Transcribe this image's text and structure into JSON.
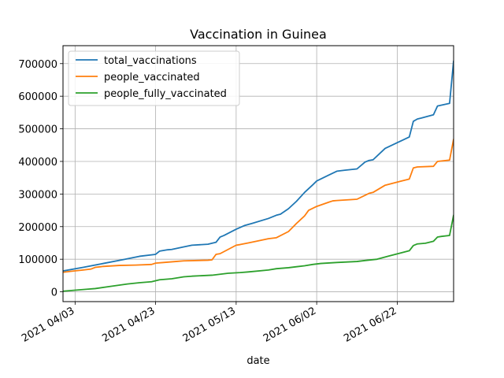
{
  "chart_data": {
    "type": "line",
    "title": "Vaccination in Guinea",
    "xlabel": "date",
    "ylabel": "",
    "x_start": "2021-03-31",
    "xlim": [
      "2021-03-31",
      "2021-07-06"
    ],
    "ylim": [
      -30000,
      755000
    ],
    "grid": true,
    "legend_position": "top-left",
    "x_ticks": [
      {
        "date": "2021-04-03",
        "label": "2021 04/03"
      },
      {
        "date": "2021-04-23",
        "label": "2021 04/23"
      },
      {
        "date": "2021-05-13",
        "label": "2021 05/13"
      },
      {
        "date": "2021-06-02",
        "label": "2021 06/02"
      },
      {
        "date": "2021-06-22",
        "label": "2021 06/22"
      }
    ],
    "y_ticks": [
      {
        "value": 0,
        "label": "0"
      },
      {
        "value": 100000,
        "label": "100000"
      },
      {
        "value": 200000,
        "label": "200000"
      },
      {
        "value": 300000,
        "label": "300000"
      },
      {
        "value": 400000,
        "label": "400000"
      },
      {
        "value": 500000,
        "label": "500000"
      },
      {
        "value": 600000,
        "label": "600000"
      },
      {
        "value": 700000,
        "label": "700000"
      }
    ],
    "series": [
      {
        "name": "total_vaccinations",
        "color": "#1f77b4",
        "points": [
          [
            "2021-03-31",
            64000
          ],
          [
            "2021-04-05",
            75000
          ],
          [
            "2021-04-10",
            87000
          ],
          [
            "2021-04-15",
            99000
          ],
          [
            "2021-04-19",
            109000
          ],
          [
            "2021-04-23",
            115000
          ],
          [
            "2021-04-24",
            125000
          ],
          [
            "2021-04-26",
            129000
          ],
          [
            "2021-04-27",
            130000
          ],
          [
            "2021-04-30",
            138000
          ],
          [
            "2021-05-02",
            143000
          ],
          [
            "2021-05-06",
            146000
          ],
          [
            "2021-05-08",
            152000
          ],
          [
            "2021-05-09",
            168000
          ],
          [
            "2021-05-10",
            173000
          ],
          [
            "2021-05-13",
            192000
          ],
          [
            "2021-05-15",
            203000
          ],
          [
            "2021-05-17",
            210000
          ],
          [
            "2021-05-21",
            225000
          ],
          [
            "2021-05-23",
            235000
          ],
          [
            "2021-05-24",
            238000
          ],
          [
            "2021-05-26",
            255000
          ],
          [
            "2021-05-28",
            278000
          ],
          [
            "2021-05-30",
            305000
          ],
          [
            "2021-06-01",
            328000
          ],
          [
            "2021-06-02",
            340000
          ],
          [
            "2021-06-05",
            358000
          ],
          [
            "2021-06-07",
            370000
          ],
          [
            "2021-06-09",
            373000
          ],
          [
            "2021-06-12",
            377000
          ],
          [
            "2021-06-14",
            398000
          ],
          [
            "2021-06-15",
            403000
          ],
          [
            "2021-06-16",
            405000
          ],
          [
            "2021-06-19",
            440000
          ],
          [
            "2021-06-25",
            475000
          ],
          [
            "2021-06-26",
            523000
          ],
          [
            "2021-06-27",
            530000
          ],
          [
            "2021-06-28",
            533000
          ],
          [
            "2021-07-01",
            543000
          ],
          [
            "2021-07-02",
            570000
          ],
          [
            "2021-07-05",
            578000
          ],
          [
            "2021-07-06",
            708000
          ],
          [
            "2021-07-07",
            722000
          ]
        ]
      },
      {
        "name": "people_vaccinated",
        "color": "#ff7f0e",
        "points": [
          [
            "2021-03-31",
            60000
          ],
          [
            "2021-04-02",
            63000
          ],
          [
            "2021-04-05",
            67000
          ],
          [
            "2021-04-07",
            70000
          ],
          [
            "2021-04-08",
            75000
          ],
          [
            "2021-04-10",
            78000
          ],
          [
            "2021-04-14",
            81000
          ],
          [
            "2021-04-18",
            82000
          ],
          [
            "2021-04-22",
            84000
          ],
          [
            "2021-04-23",
            88000
          ],
          [
            "2021-04-25",
            90000
          ],
          [
            "2021-04-28",
            93000
          ],
          [
            "2021-04-30",
            95000
          ],
          [
            "2021-05-06",
            97000
          ],
          [
            "2021-05-07",
            98000
          ],
          [
            "2021-05-08",
            115000
          ],
          [
            "2021-05-09",
            117000
          ],
          [
            "2021-05-11",
            130000
          ],
          [
            "2021-05-13",
            143000
          ],
          [
            "2021-05-14",
            145000
          ],
          [
            "2021-05-16",
            150000
          ],
          [
            "2021-05-18",
            155000
          ],
          [
            "2021-05-21",
            163000
          ],
          [
            "2021-05-23",
            166000
          ],
          [
            "2021-05-26",
            185000
          ],
          [
            "2021-05-28",
            210000
          ],
          [
            "2021-05-30",
            233000
          ],
          [
            "2021-05-31",
            250000
          ],
          [
            "2021-06-02",
            262000
          ],
          [
            "2021-06-05",
            275000
          ],
          [
            "2021-06-06",
            279000
          ],
          [
            "2021-06-07",
            280000
          ],
          [
            "2021-06-12",
            284000
          ],
          [
            "2021-06-15",
            302000
          ],
          [
            "2021-06-16",
            305000
          ],
          [
            "2021-06-19",
            327000
          ],
          [
            "2021-06-25",
            346000
          ],
          [
            "2021-06-26",
            380000
          ],
          [
            "2021-06-27",
            383000
          ],
          [
            "2021-07-01",
            385000
          ],
          [
            "2021-07-02",
            400000
          ],
          [
            "2021-07-05",
            404000
          ],
          [
            "2021-07-06",
            468000
          ],
          [
            "2021-07-07",
            472000
          ]
        ]
      },
      {
        "name": "people_fully_vaccinated",
        "color": "#2ca02c",
        "points": [
          [
            "2021-03-31",
            2000
          ],
          [
            "2021-04-03",
            5000
          ],
          [
            "2021-04-06",
            8000
          ],
          [
            "2021-04-08",
            10000
          ],
          [
            "2021-04-12",
            17000
          ],
          [
            "2021-04-16",
            24000
          ],
          [
            "2021-04-19",
            28000
          ],
          [
            "2021-04-22",
            31000
          ],
          [
            "2021-04-23",
            34000
          ],
          [
            "2021-04-24",
            37000
          ],
          [
            "2021-04-27",
            40000
          ],
          [
            "2021-04-30",
            46000
          ],
          [
            "2021-05-02",
            48000
          ],
          [
            "2021-05-07",
            51000
          ],
          [
            "2021-05-11",
            57000
          ],
          [
            "2021-05-14",
            59000
          ],
          [
            "2021-05-16",
            61000
          ],
          [
            "2021-05-21",
            67000
          ],
          [
            "2021-05-23",
            71000
          ],
          [
            "2021-05-26",
            74000
          ],
          [
            "2021-05-28",
            77000
          ],
          [
            "2021-05-30",
            80000
          ],
          [
            "2021-06-01",
            84000
          ],
          [
            "2021-06-03",
            87000
          ],
          [
            "2021-06-07",
            90000
          ],
          [
            "2021-06-12",
            93000
          ],
          [
            "2021-06-14",
            96000
          ],
          [
            "2021-06-17",
            100000
          ],
          [
            "2021-06-20",
            110000
          ],
          [
            "2021-06-25",
            126000
          ],
          [
            "2021-06-26",
            142000
          ],
          [
            "2021-06-27",
            147000
          ],
          [
            "2021-06-29",
            149000
          ],
          [
            "2021-07-01",
            155000
          ],
          [
            "2021-07-02",
            168000
          ],
          [
            "2021-07-03",
            170000
          ],
          [
            "2021-07-05",
            173000
          ],
          [
            "2021-07-06",
            235000
          ],
          [
            "2021-07-07",
            248000
          ]
        ]
      }
    ]
  }
}
